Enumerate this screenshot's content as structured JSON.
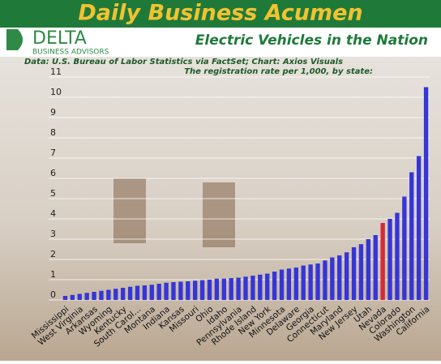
{
  "header": {
    "banner": "Daily Business Acumen",
    "logo_name": "DELTA",
    "logo_tagline": "BUSINESS ADVISORS"
  },
  "chart_data": {
    "type": "bar",
    "title": "Electric Vehicles in the Nation",
    "source": "Data: U.S. Bureau of Labor Statistics via FactSet; Chart: Axios Visuals",
    "subtitle": "The registration rate per 1,000, by state:",
    "categories": [
      "Mississippi",
      null,
      "West Virginia",
      null,
      "Arkansas",
      null,
      "Wyoming",
      null,
      "Kentucky",
      null,
      "South Carol…",
      null,
      "Montana",
      null,
      "Indiana",
      null,
      "Kansas",
      null,
      "Missouri",
      null,
      "Ohio",
      null,
      "Idaho",
      null,
      "Pennsylvania",
      null,
      "Rhode Island",
      null,
      "New York",
      null,
      "Minnesota",
      null,
      "Delaware",
      null,
      "Georgia",
      null,
      "Connecticut",
      null,
      "Maryland",
      null,
      "New Jersey",
      null,
      "Utah",
      null,
      "Nevada",
      null,
      "Colorado",
      null,
      "Washington",
      null,
      "California"
    ],
    "values": [
      0.2,
      0.25,
      0.3,
      0.35,
      0.4,
      0.45,
      0.5,
      0.55,
      0.6,
      0.65,
      0.7,
      0.72,
      0.75,
      0.8,
      0.85,
      0.88,
      0.9,
      0.92,
      0.95,
      0.98,
      1.0,
      1.05,
      1.05,
      1.08,
      1.1,
      1.15,
      1.2,
      1.25,
      1.3,
      1.4,
      1.5,
      1.55,
      1.6,
      1.7,
      1.75,
      1.8,
      1.95,
      2.1,
      2.2,
      2.35,
      2.6,
      2.75,
      3.0,
      3.2,
      3.8,
      4.0,
      4.3,
      5.1,
      6.3,
      7.1,
      10.5
    ],
    "colors": [
      "#3535d8",
      "#3535d8",
      "#3535d8",
      "#3535d8",
      "#3535d8",
      "#3535d8",
      "#3535d8",
      "#3535d8",
      "#3535d8",
      "#3535d8",
      "#3535d8",
      "#3535d8",
      "#3535d8",
      "#3535d8",
      "#3535d8",
      "#3535d8",
      "#3535d8",
      "#3535d8",
      "#3535d8",
      "#3535d8",
      "#3535d8",
      "#3535d8",
      "#3535d8",
      "#3535d8",
      "#3535d8",
      "#3535d8",
      "#3535d8",
      "#3535d8",
      "#3535d8",
      "#3535d8",
      "#3535d8",
      "#3535d8",
      "#3535d8",
      "#3535d8",
      "#3535d8",
      "#3535d8",
      "#3535d8",
      "#3535d8",
      "#3535d8",
      "#3535d8",
      "#3535d8",
      "#3535d8",
      "#3535d8",
      "#3535d8",
      "#d42a3a",
      "#3535d8",
      "#3535d8",
      "#3535d8",
      "#3535d8",
      "#3535d8",
      "#3535d8"
    ],
    "ylim": [
      0,
      11
    ],
    "yticks": [
      0,
      1,
      2,
      3,
      4,
      5,
      6,
      7,
      8,
      9,
      10,
      11
    ],
    "grid": true
  }
}
